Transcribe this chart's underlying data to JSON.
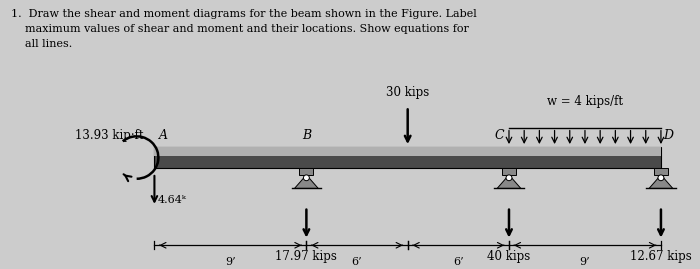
{
  "bg_color": "#cccccc",
  "title_text": "1.  Draw the shear and moment diagrams for the beam shown in the Figure. Label\n    maximum values of shear and moment and their locations. Show equations for\n    all lines.",
  "beam_label_A": "A",
  "beam_label_B": "B",
  "beam_label_C": "C",
  "beam_label_D": "D",
  "moment_label": "13.93 kip·ft",
  "load_30": "30 kips",
  "dist_load": "w = 4 kips/ft",
  "reaction_A": "4.64ᵏ",
  "reaction_B": "17.97 kips",
  "reaction_C": "40 kips",
  "reaction_D": "12.67 kips",
  "dim_9_left": "9’",
  "dim_6_left": "6’",
  "dim_6_right": "6’",
  "dim_9_right": "9’",
  "beam_dark": "#4a4a4a",
  "beam_light": "#b0b0b0",
  "support_dark": "#606060",
  "support_light": "#909090"
}
